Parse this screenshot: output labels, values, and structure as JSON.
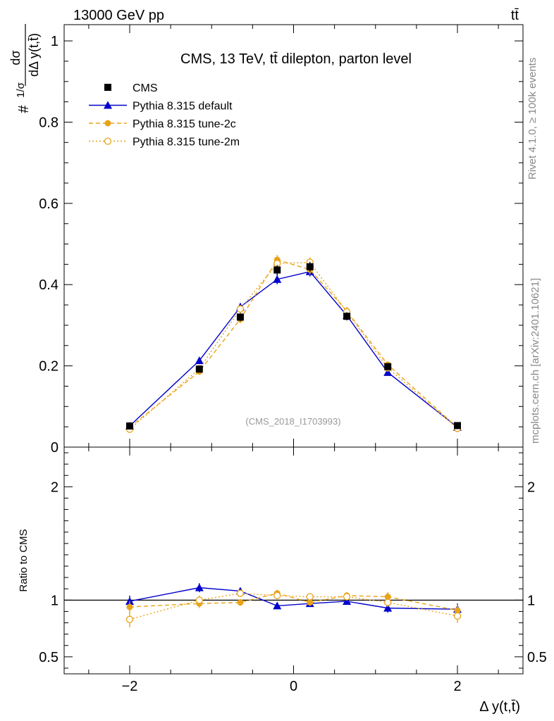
{
  "header": {
    "energy_label": "13000 GeV pp",
    "process_label": "tt̄"
  },
  "side_labels": {
    "rivet": "Rivet 4.1.0, ≥ 100k events",
    "source": "mcplots.cern.ch [arXiv:2401.10621]"
  },
  "chart_data": [
    {
      "type": "line",
      "title": "CMS, 13 TeV, tt̄ dilepton, parton level",
      "watermark": "(CMS_2018_I1703993)",
      "ylabel_num": "dσ",
      "ylabel_den": "dΔ y(t,t̄)",
      "ylabel_prefix": "#",
      "ylabel_frac": "1/σ",
      "ylim": [
        0,
        1.04
      ],
      "xlim": [
        -2.8,
        2.8
      ],
      "yticks": [
        0,
        0.2,
        0.4,
        0.6,
        0.8,
        1
      ],
      "ytick_labels": [
        "0",
        "0.2",
        "0.4",
        "0.6",
        "0.8",
        "1"
      ],
      "x": [
        -2.0,
        -1.15,
        -0.65,
        -0.2,
        0.2,
        0.65,
        1.15,
        2.0
      ],
      "legend_position": "top-left",
      "series": [
        {
          "name": "CMS",
          "color": "#000000",
          "style": "square",
          "values": [
            0.052,
            0.192,
            0.32,
            0.436,
            0.444,
            0.322,
            0.198,
            0.053
          ],
          "errors": [
            0.004,
            0.006,
            0.01,
            0.012,
            0.012,
            0.01,
            0.006,
            0.004
          ]
        },
        {
          "name": "Pythia 8.315 default",
          "color": "#0000cc",
          "style": "triangle-solid",
          "values": [
            0.052,
            0.213,
            0.345,
            0.413,
            0.432,
            0.324,
            0.184,
            0.049
          ],
          "errors": [
            0.003,
            0.008,
            0.01,
            0.012,
            0.012,
            0.01,
            0.007,
            0.003
          ]
        },
        {
          "name": "Pythia 8.315 tune-2c",
          "color": "#e8a317",
          "style": "circle-dashed",
          "values": [
            0.049,
            0.186,
            0.315,
            0.461,
            0.437,
            0.335,
            0.203,
            0.048
          ],
          "errors": [
            0.003,
            0.008,
            0.01,
            0.012,
            0.012,
            0.01,
            0.007,
            0.003
          ]
        },
        {
          "name": "Pythia 8.315 tune-2m",
          "color": "#e8a317",
          "style": "circle-open-dotted",
          "values": [
            0.044,
            0.193,
            0.34,
            0.452,
            0.455,
            0.333,
            0.195,
            0.046
          ],
          "errors": [
            0.003,
            0.008,
            0.01,
            0.012,
            0.012,
            0.01,
            0.007,
            0.003
          ]
        }
      ]
    },
    {
      "type": "line",
      "title": "",
      "ylabel": "Ratio to CMS",
      "xlabel": "Δ y(t,t̄)",
      "ylim": [
        0.35,
        2.35
      ],
      "xlim": [
        -2.8,
        2.8
      ],
      "yticks": [
        0.5,
        1,
        2
      ],
      "ytick_labels": [
        "0.5",
        "1",
        "2"
      ],
      "xticks": [
        -2,
        0,
        2
      ],
      "xtick_labels": [
        "−2",
        "0",
        "2"
      ],
      "reference_line": 1,
      "x": [
        -2.0,
        -1.15,
        -0.65,
        -0.2,
        0.2,
        0.65,
        1.15,
        2.0
      ],
      "series": [
        {
          "name": "Pythia 8.315 default",
          "color": "#0000cc",
          "style": "triangle-solid",
          "values": [
            0.99,
            1.11,
            1.08,
            0.95,
            0.97,
            0.99,
            0.93,
            0.92
          ],
          "errors": [
            0.05,
            0.04,
            0.03,
            0.03,
            0.02,
            0.02,
            0.04,
            0.05
          ]
        },
        {
          "name": "Pythia 8.315 tune-2c",
          "color": "#e8a317",
          "style": "circle-dashed",
          "values": [
            0.94,
            0.97,
            0.98,
            1.06,
            0.98,
            1.04,
            1.03,
            0.91
          ],
          "errors": [
            0.05,
            0.04,
            0.03,
            0.03,
            0.03,
            0.03,
            0.04,
            0.05
          ]
        },
        {
          "name": "Pythia 8.315 tune-2m",
          "color": "#e8a317",
          "style": "circle-open-dotted",
          "values": [
            0.83,
            1.0,
            1.06,
            1.04,
            1.03,
            1.03,
            0.98,
            0.86
          ],
          "errors": [
            0.07,
            0.04,
            0.03,
            0.03,
            0.03,
            0.03,
            0.04,
            0.06
          ]
        }
      ]
    }
  ]
}
